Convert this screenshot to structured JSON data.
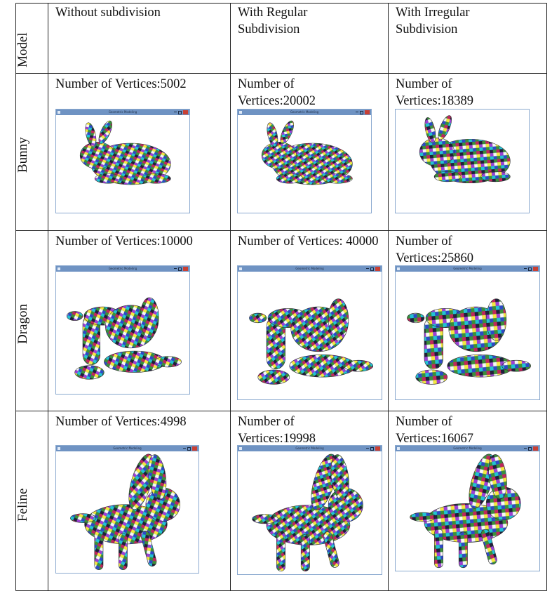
{
  "header": {
    "model_label": "Model",
    "col1": "Without subdivision",
    "col2": "With Regular Subdivision",
    "col3": "With Irregular Subdivision"
  },
  "window_title": "Geometric Modeling",
  "rows": [
    {
      "model": "Bunny",
      "shape_icon": "bunny",
      "cells": [
        {
          "label": "Number of Vertices:5002"
        },
        {
          "label": "Number of Vertices:20002"
        },
        {
          "label": "Number of Vertices:18389"
        }
      ]
    },
    {
      "model": "Dragon",
      "shape_icon": "dragon",
      "cells": [
        {
          "label": "Number of Vertices:10000"
        },
        {
          "label": "Number of Vertices: 40000"
        },
        {
          "label": "Number of Vertices:25860"
        }
      ]
    },
    {
      "model": "Feline",
      "shape_icon": "feline",
      "cells": [
        {
          "label": "Number of Vertices:4998"
        },
        {
          "label": "Number of Vertices:19998"
        },
        {
          "label": "Number of Vertices:16067"
        }
      ]
    }
  ]
}
